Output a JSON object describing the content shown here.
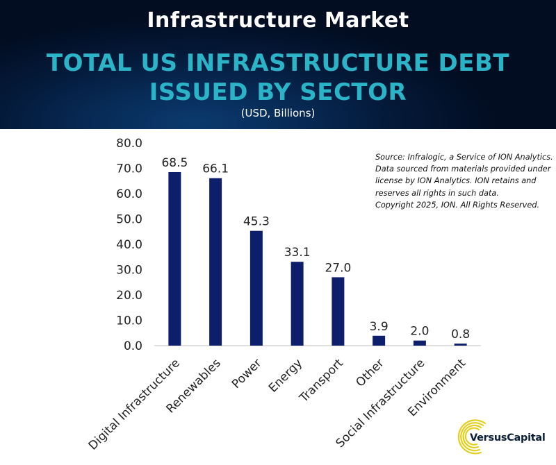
{
  "header": {
    "title": "Infrastructure Market",
    "subtitle_line1": "TOTAL US INFRASTRUCTURE DEBT",
    "subtitle_line2": "ISSUED BY SECTOR",
    "units": "(USD, Billions)"
  },
  "source_note": {
    "line1": "Source: Infralogic, a Service of ION Analytics.",
    "line2": "Data sourced from materials provided under",
    "line3": "license by ION Analytics. ION retains and",
    "line4": "reserves all rights in such data.",
    "line5": "Copyright 2025, ION. All Rights Reserved."
  },
  "logo": {
    "text": "VersusCapital",
    "icon": "versus-capital-swirl-icon"
  },
  "colors": {
    "bar": "#0d1f6b",
    "header_bg": "#041a3a",
    "subtitle": "#2bb3c7",
    "logo_accent": "#e4cf1f"
  },
  "chart_data": {
    "type": "bar",
    "title": "TOTAL US INFRASTRUCTURE DEBT ISSUED BY SECTOR",
    "subtitle": "(USD, Billions)",
    "xlabel": "",
    "ylabel": "",
    "categories": [
      "Digital Infrastructure",
      "Renewables",
      "Power",
      "Energy",
      "Transport",
      "Other",
      "Social Infrastructure",
      "Environment"
    ],
    "values": [
      68.5,
      66.1,
      45.3,
      33.1,
      27.0,
      3.9,
      2.0,
      0.8
    ],
    "data_labels": [
      "68.5",
      "66.1",
      "45.3",
      "33.1",
      "27.0",
      "3.9",
      "2.0",
      "0.8"
    ],
    "ylim": [
      0,
      80
    ],
    "yticks": [
      "0.0",
      "10.0",
      "20.0",
      "30.0",
      "40.0",
      "50.0",
      "60.0",
      "70.0",
      "80.0"
    ],
    "grid": false,
    "legend": "none"
  }
}
